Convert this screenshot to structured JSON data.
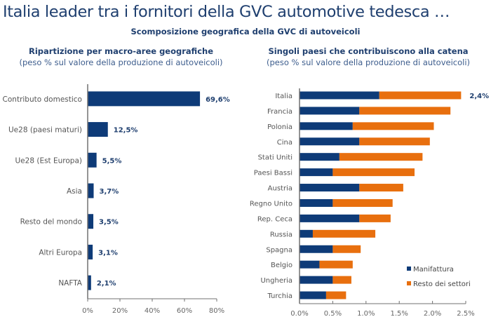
{
  "header": {
    "title": "Italia leader tra i fornitori della GVC automotive tedesca …",
    "subtitle": "Scomposizione geografica della GVC di autoveicoli"
  },
  "colors": {
    "navy": "#0e3b78",
    "orange": "#e86f0e",
    "title": "#1f3f6f",
    "axis": "#707070",
    "label": "#555555"
  },
  "chart_data": [
    {
      "type": "bar",
      "orientation": "horizontal",
      "title": "Ripartizione per macro-aree geografiche",
      "subtitle": "(peso % sul valore della produzione di autoveicoli)",
      "categories": [
        "Contributo domestico",
        "Ue28 (paesi maturi)",
        "Ue28 (Est Europa)",
        "Asia",
        "Resto del mondo",
        "Altri Europa",
        "NAFTA"
      ],
      "values": [
        69.6,
        12.5,
        5.5,
        3.7,
        3.5,
        3.1,
        2.1
      ],
      "data_labels": [
        "69,6%",
        "12,5%",
        "5,5%",
        "3,7%",
        "3,5%",
        "3,1%",
        "2,1%"
      ],
      "xlim": [
        0,
        80
      ],
      "xticks": [
        0,
        20,
        40,
        60,
        80
      ],
      "xtick_labels": [
        "0%",
        "20%",
        "40%",
        "60%",
        "80%"
      ],
      "grid": false
    },
    {
      "type": "bar",
      "orientation": "horizontal",
      "stacked": true,
      "title": "Singoli paesi che contribuiscono alla catena",
      "subtitle": "(peso % sul valore della produzione di autoveicoli)",
      "categories": [
        "Italia",
        "Francia",
        "Polonia",
        "Cina",
        "Stati Uniti",
        "Paesi Bassi",
        "Austria",
        "Regno Unito",
        "Rep. Ceca",
        "Russia",
        "Spagna",
        "Belgio",
        "Ungheria",
        "Turchia"
      ],
      "series": [
        {
          "name": "Manifattura",
          "values": [
            1.2,
            0.9,
            0.8,
            0.9,
            0.6,
            0.5,
            0.9,
            0.5,
            0.9,
            0.2,
            0.5,
            0.3,
            0.5,
            0.4
          ]
        },
        {
          "name": "Resto dei settori",
          "values": [
            1.23,
            1.37,
            1.22,
            1.06,
            1.25,
            1.23,
            0.66,
            0.9,
            0.47,
            0.94,
            0.42,
            0.5,
            0.28,
            0.3
          ]
        }
      ],
      "annotation": "2,4%",
      "xlim": [
        0,
        2.5
      ],
      "xticks": [
        0,
        0.5,
        1.0,
        1.5,
        2.0,
        2.5
      ],
      "xtick_labels": [
        "0.0%",
        "0.5%",
        "1.0%",
        "1.5%",
        "2.0%",
        "2.5%"
      ],
      "legend_position": "bottom-right",
      "grid": false
    }
  ]
}
